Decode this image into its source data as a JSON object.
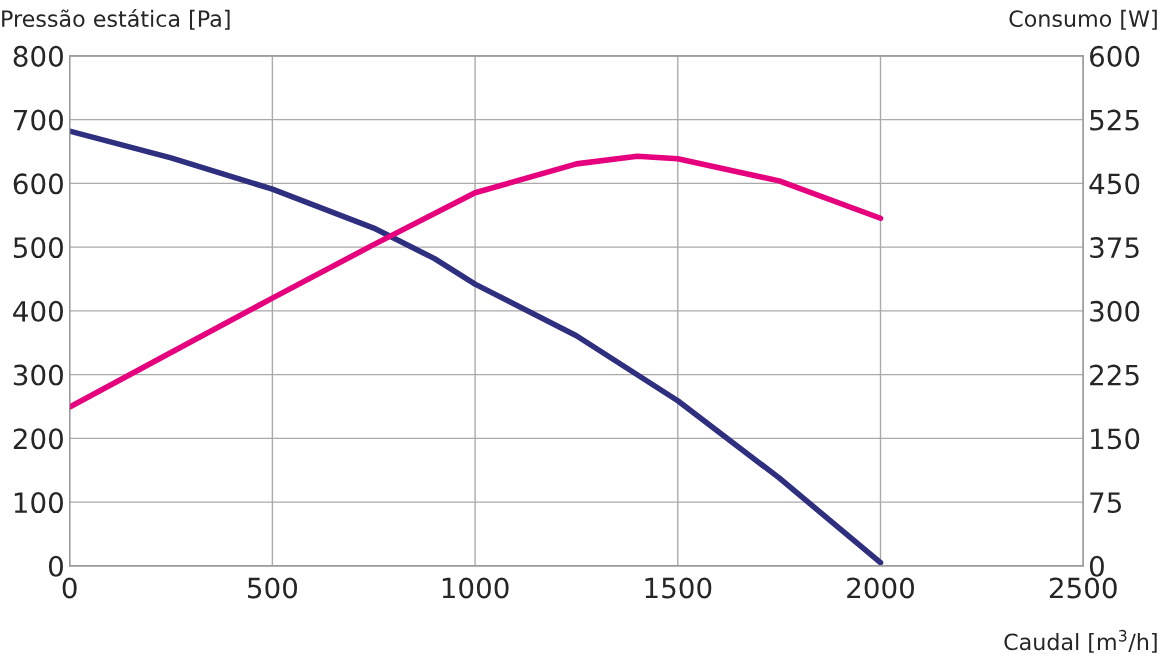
{
  "chart_data": {
    "type": "line",
    "ylabel": "Pressão estática [Pa]",
    "y2label": "Consumo [W]",
    "xlabel": "Caudal [m$^{3}$/h]",
    "xlim": [
      0,
      2500
    ],
    "xticks": [
      0,
      500,
      1000,
      1500,
      2000,
      2500
    ],
    "ylim": [
      0,
      800
    ],
    "yticks": [
      0,
      100,
      200,
      300,
      400,
      500,
      600,
      700,
      800
    ],
    "y2lim": [
      0,
      600
    ],
    "y2ticks": [
      0,
      75,
      150,
      225,
      300,
      375,
      450,
      525,
      600
    ],
    "grid": true,
    "marker": "none",
    "line_style": "solid",
    "series": [
      {
        "color": "#2e2f7f",
        "x": [
          0,
          250,
          500,
          750,
          900,
          1000,
          1250,
          1500,
          1750,
          2000
        ],
        "values": [
          682,
          640,
          591,
          530,
          482,
          442,
          361,
          259,
          138,
          5
        ]
      },
      {
        "color": "#e6007e",
        "axis": "y2",
        "x": [
          0,
          250,
          500,
          750,
          1000,
          1250,
          1400,
          1500,
          1750,
          2000
        ],
        "values": [
          187,
          251,
          315,
          378,
          439,
          473,
          482,
          479,
          453,
          409
        ]
      }
    ]
  }
}
